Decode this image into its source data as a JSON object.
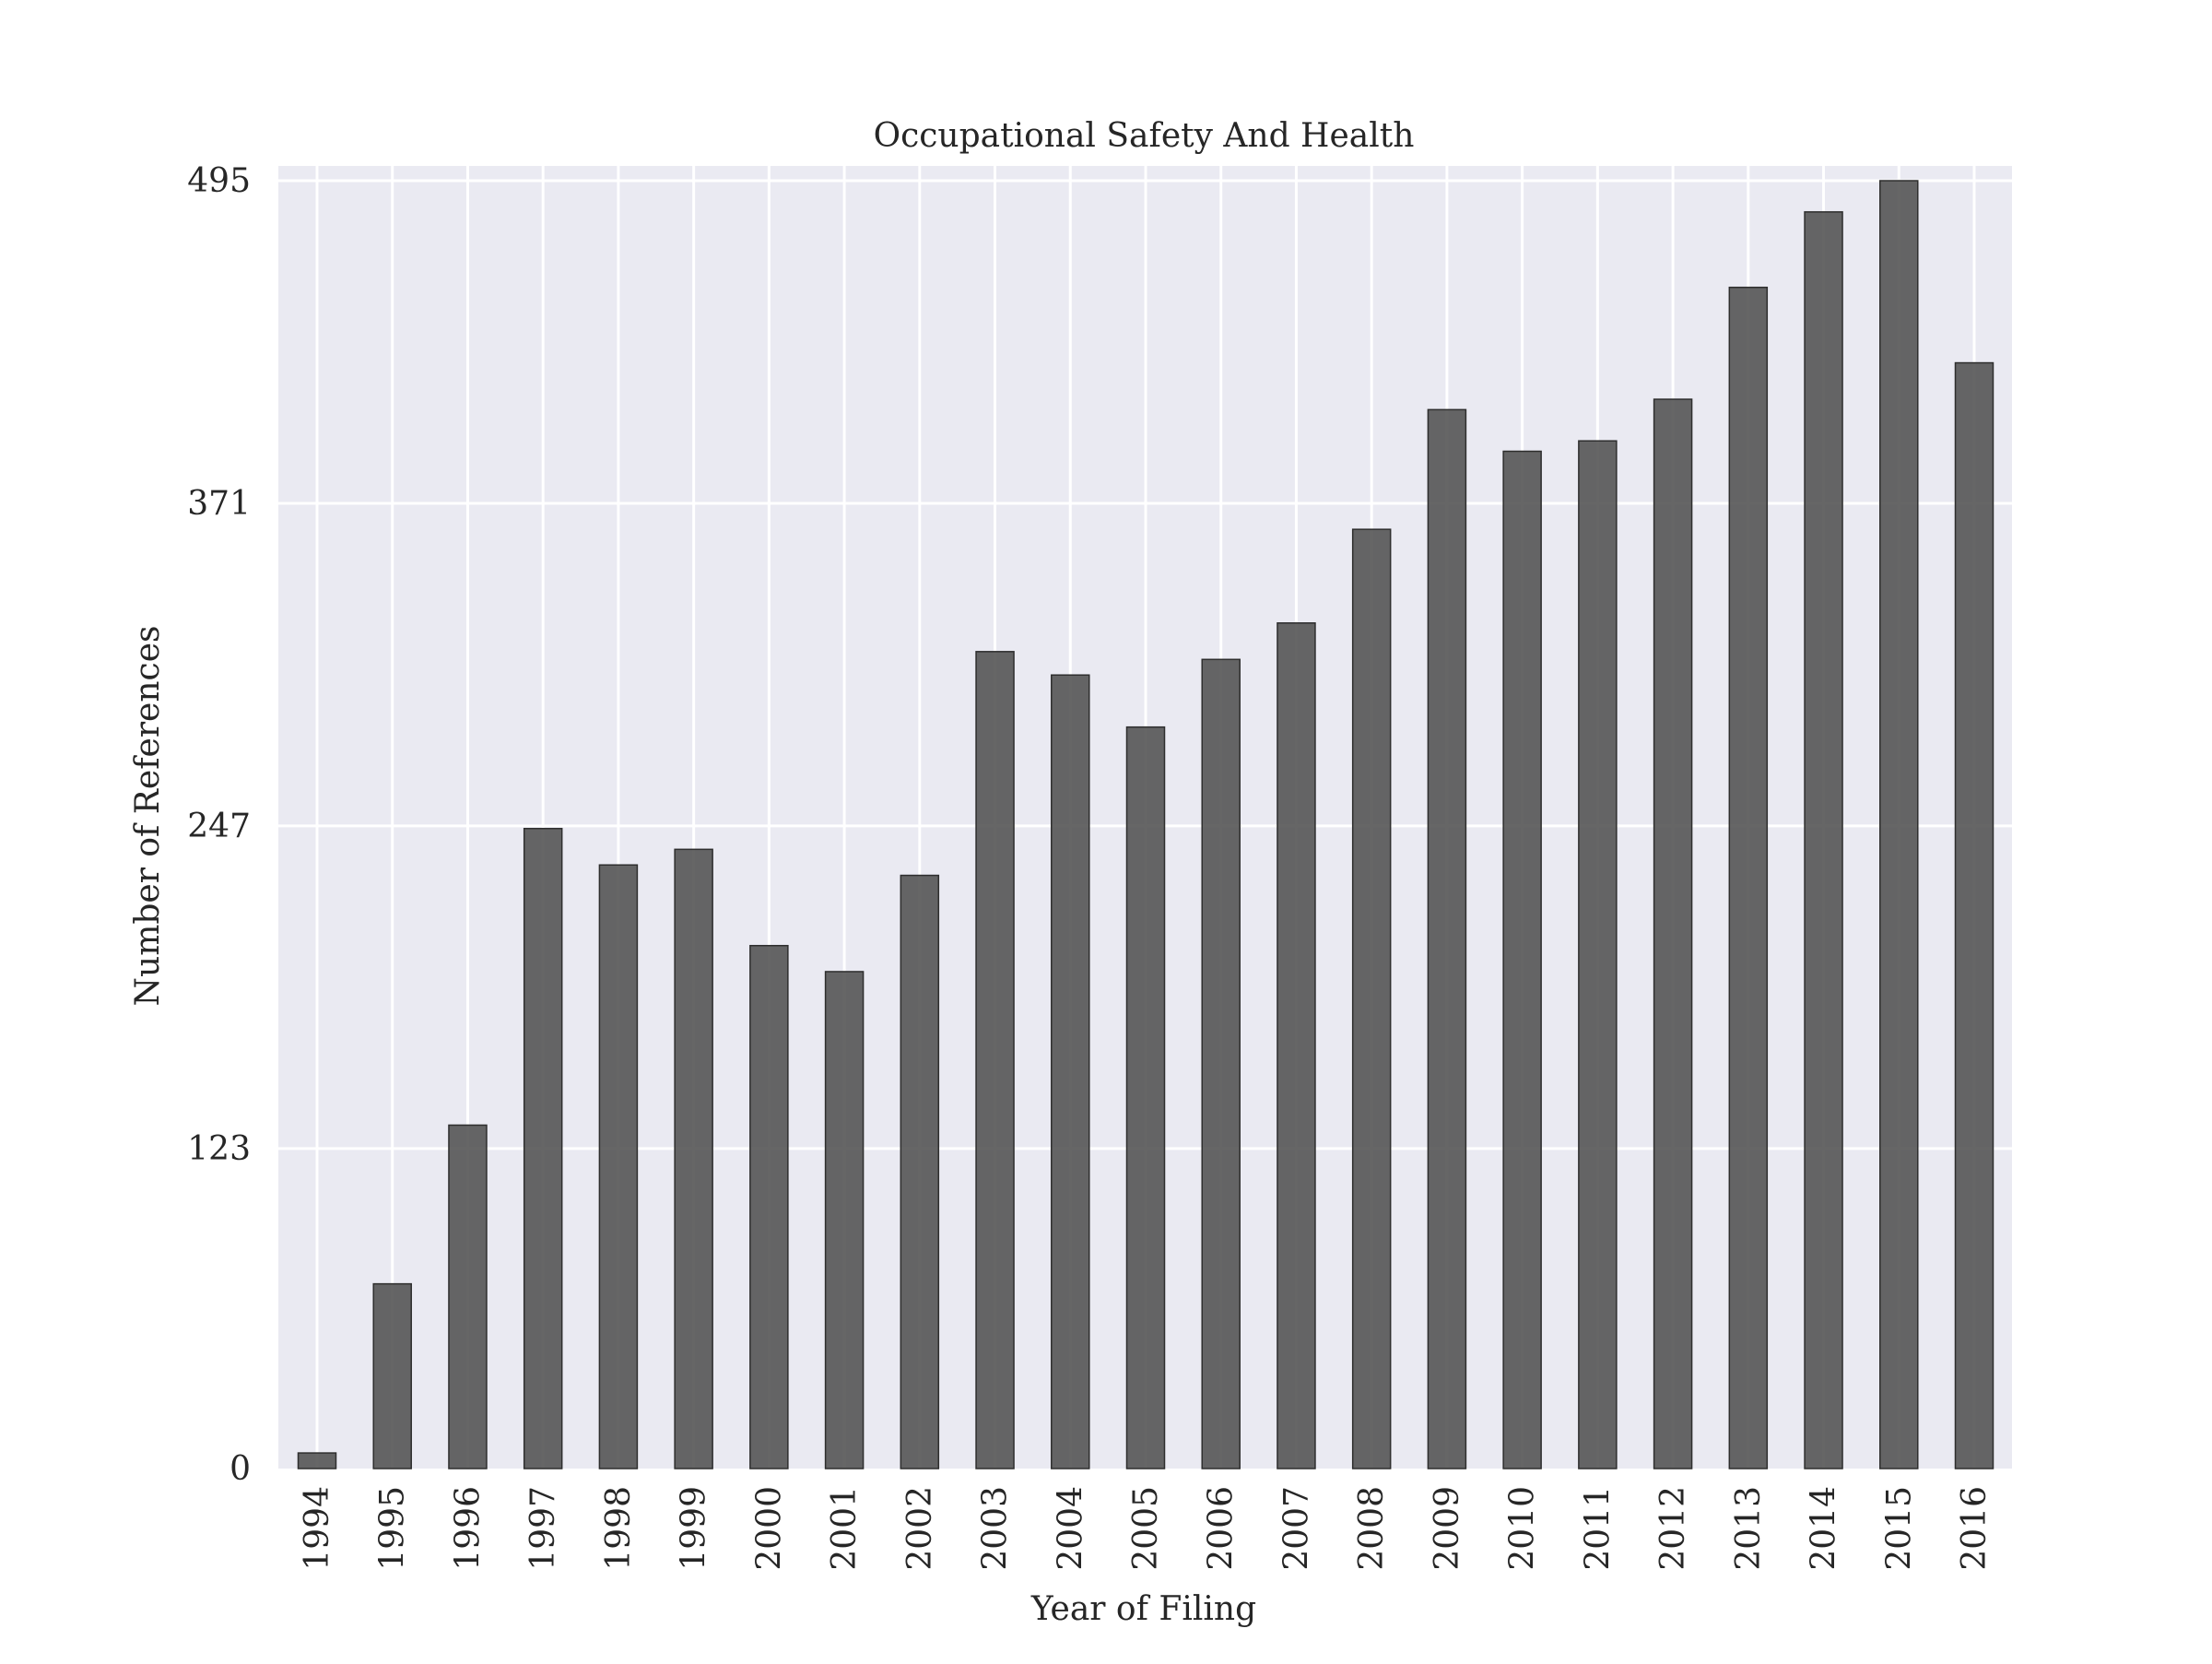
{
  "chart_data": {
    "type": "bar",
    "title": "Occupational Safety And Health",
    "xlabel": "Year of Filing",
    "ylabel": "Number of References",
    "categories": [
      "1994",
      "1995",
      "1996",
      "1997",
      "1998",
      "1999",
      "2000",
      "2001",
      "2002",
      "2003",
      "2004",
      "2005",
      "2006",
      "2007",
      "2008",
      "2009",
      "2010",
      "2011",
      "2012",
      "2013",
      "2014",
      "2015",
      "2016"
    ],
    "values": [
      6,
      71,
      132,
      246,
      232,
      238,
      201,
      191,
      228,
      314,
      305,
      285,
      311,
      325,
      361,
      407,
      391,
      395,
      411,
      454,
      483,
      495,
      425
    ],
    "yticks": [
      "0",
      "123",
      "247",
      "371",
      "495"
    ],
    "ylim": [
      0,
      500
    ],
    "grid": true,
    "colors": {
      "plot_background": "#eaeaf2",
      "grid": "#ffffff",
      "bar_fill": "#555555",
      "bar_edge": "#2e2e2e"
    }
  }
}
